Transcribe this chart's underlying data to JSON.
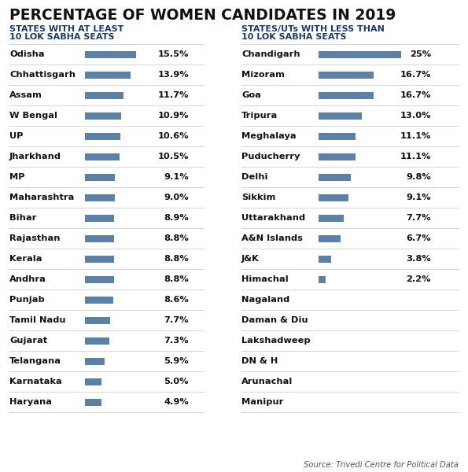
{
  "title": "PERCENTAGE OF WOMEN CANDIDATES IN 2019",
  "title_color": "#111111",
  "left_header1": "STATES WITH AT LEAST",
  "left_header2": "10 LOK SABHA SEATS",
  "right_header1": "STATES/UTs WITH LESS THAN",
  "right_header2": "10 LOK SABHA SEATS",
  "header_color": "#1a3a6b",
  "bar_color": "#5b82a6",
  "bg_color": "#ffffff",
  "line_color": "#cccccc",
  "left_states": [
    "Odisha",
    "Chhattisgarh",
    "Assam",
    "W Bengal",
    "UP",
    "Jharkhand",
    "MP",
    "Maharashtra",
    "Bihar",
    "Rajasthan",
    "Kerala",
    "Andhra",
    "Punjab",
    "Tamil Nadu",
    "Gujarat",
    "Telangana",
    "Karnataka",
    "Haryana"
  ],
  "left_values": [
    15.5,
    13.9,
    11.7,
    10.9,
    10.6,
    10.5,
    9.1,
    9.0,
    8.9,
    8.8,
    8.8,
    8.8,
    8.6,
    7.7,
    7.3,
    5.9,
    5.0,
    4.9
  ],
  "left_labels": [
    "15.5%",
    "13.9%",
    "11.7%",
    "10.9%",
    "10.6%",
    "10.5%",
    "9.1%",
    "9.0%",
    "8.9%",
    "8.8%",
    "8.8%",
    "8.8%",
    "8.6%",
    "7.7%",
    "7.3%",
    "5.9%",
    "5.0%",
    "4.9%"
  ],
  "right_states": [
    "Chandigarh",
    "Mizoram",
    "Goa",
    "Tripura",
    "Meghalaya",
    "Puducherry",
    "Delhi",
    "Sikkim",
    "Uttarakhand",
    "A&N Islands",
    "J&K",
    "Himachal",
    "Nagaland",
    "Daman & Diu",
    "Lakshadweep",
    "DN & H",
    "Arunachal",
    "Manipur"
  ],
  "right_values": [
    25.0,
    16.7,
    16.7,
    13.0,
    11.1,
    11.1,
    9.8,
    9.1,
    7.7,
    6.7,
    3.8,
    2.2,
    0,
    0,
    0,
    0,
    0,
    0
  ],
  "right_labels": [
    "25%",
    "16.7%",
    "16.7%",
    "13.0%",
    "11.1%",
    "11.1%",
    "9.8%",
    "9.1%",
    "7.7%",
    "6.7%",
    "3.8%",
    "2.2%",
    "",
    "",
    "",
    "",
    "",
    ""
  ],
  "source": "Source: Trivedi Centre for Political Data",
  "max_bar": 25.0
}
